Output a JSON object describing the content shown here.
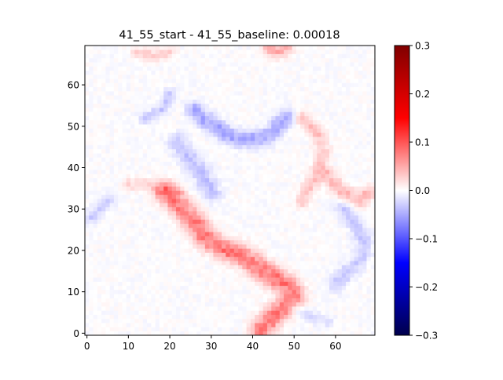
{
  "chart_data": {
    "type": "heatmap",
    "title": "41_55_start - 41_55_baseline: 0.00018",
    "xlabel": "",
    "ylabel": "",
    "grid_size": [
      70,
      70
    ],
    "xlim": [
      -0.5,
      69.5
    ],
    "ylim": [
      -0.5,
      69.5
    ],
    "x_ticks": [
      0,
      10,
      20,
      30,
      40,
      50,
      60
    ],
    "y_ticks": [
      0,
      10,
      20,
      30,
      40,
      50,
      60
    ],
    "colormap": "seismic",
    "colormap_stops": [
      "#00004c",
      "#0000ff",
      "#ffffff",
      "#ff0000",
      "#800000"
    ],
    "colorbar": {
      "vmin": -0.3,
      "vmax": 0.3,
      "tick_values": [
        0.3,
        0.2,
        0.1,
        0.0,
        -0.1,
        -0.2,
        -0.3
      ],
      "tick_labels": [
        "0.3",
        "0.2",
        "0.1",
        "0.0",
        "−0.1",
        "−0.2",
        "−0.3"
      ]
    },
    "features": [
      {
        "kind": "positive_band",
        "value": 0.08,
        "points": [
          [
            42,
            1
          ],
          [
            44,
            3
          ],
          [
            46,
            5
          ],
          [
            48,
            7
          ],
          [
            50,
            9
          ],
          [
            49,
            11
          ],
          [
            46,
            13
          ],
          [
            43,
            15
          ],
          [
            40,
            17
          ],
          [
            37,
            19
          ],
          [
            34,
            20
          ],
          [
            30,
            22
          ],
          [
            28,
            24
          ],
          [
            27,
            26
          ],
          [
            25,
            28
          ],
          [
            23,
            30
          ],
          [
            21,
            32
          ],
          [
            19,
            34
          ]
        ],
        "width": 1.8
      },
      {
        "kind": "positive_band",
        "value": 0.035,
        "points": [
          [
            52,
            52
          ],
          [
            54,
            50
          ],
          [
            56,
            48
          ],
          [
            57,
            44
          ],
          [
            56,
            40
          ],
          [
            54,
            36
          ],
          [
            52,
            32
          ]
        ],
        "width": 1.2
      },
      {
        "kind": "positive_band",
        "value": 0.04,
        "points": [
          [
            58,
            38
          ],
          [
            62,
            34
          ],
          [
            66,
            32
          ],
          [
            68,
            34
          ]
        ],
        "width": 1.3
      },
      {
        "kind": "positive_band",
        "value": 0.03,
        "points": [
          [
            12,
            68
          ],
          [
            16,
            67
          ],
          [
            20,
            68
          ]
        ],
        "width": 1.0
      },
      {
        "kind": "positive_band",
        "value": 0.05,
        "points": [
          [
            44,
            69
          ],
          [
            46,
            68
          ],
          [
            48,
            69
          ]
        ],
        "width": 1.2
      },
      {
        "kind": "positive_band",
        "value": 0.025,
        "points": [
          [
            10,
            36
          ],
          [
            14,
            36
          ],
          [
            18,
            35
          ],
          [
            22,
            34
          ]
        ],
        "width": 1.0
      },
      {
        "kind": "negative_band",
        "value": -0.05,
        "points": [
          [
            26,
            54
          ],
          [
            28,
            52
          ],
          [
            31,
            50
          ],
          [
            34,
            48
          ],
          [
            37,
            47
          ],
          [
            41,
            47
          ],
          [
            44,
            48
          ],
          [
            46,
            50
          ],
          [
            48,
            52
          ]
        ],
        "width": 1.4
      },
      {
        "kind": "negative_band",
        "value": -0.035,
        "points": [
          [
            22,
            46
          ],
          [
            25,
            42
          ],
          [
            28,
            38
          ],
          [
            30,
            34
          ]
        ],
        "width": 1.6
      },
      {
        "kind": "negative_band",
        "value": -0.03,
        "points": [
          [
            62,
            30
          ],
          [
            65,
            26
          ],
          [
            67,
            22
          ],
          [
            66,
            18
          ],
          [
            63,
            15
          ],
          [
            60,
            12
          ]
        ],
        "width": 1.4
      },
      {
        "kind": "negative_band",
        "value": -0.025,
        "points": [
          [
            1,
            28
          ],
          [
            3,
            30
          ],
          [
            5,
            32
          ]
        ],
        "width": 1.1
      },
      {
        "kind": "negative_band",
        "value": -0.03,
        "points": [
          [
            14,
            52
          ],
          [
            18,
            54
          ],
          [
            20,
            58
          ]
        ],
        "width": 1.0
      },
      {
        "kind": "negative_band",
        "value": -0.02,
        "points": [
          [
            50,
            6
          ],
          [
            54,
            4
          ],
          [
            58,
            3
          ]
        ],
        "width": 1.0
      }
    ]
  }
}
